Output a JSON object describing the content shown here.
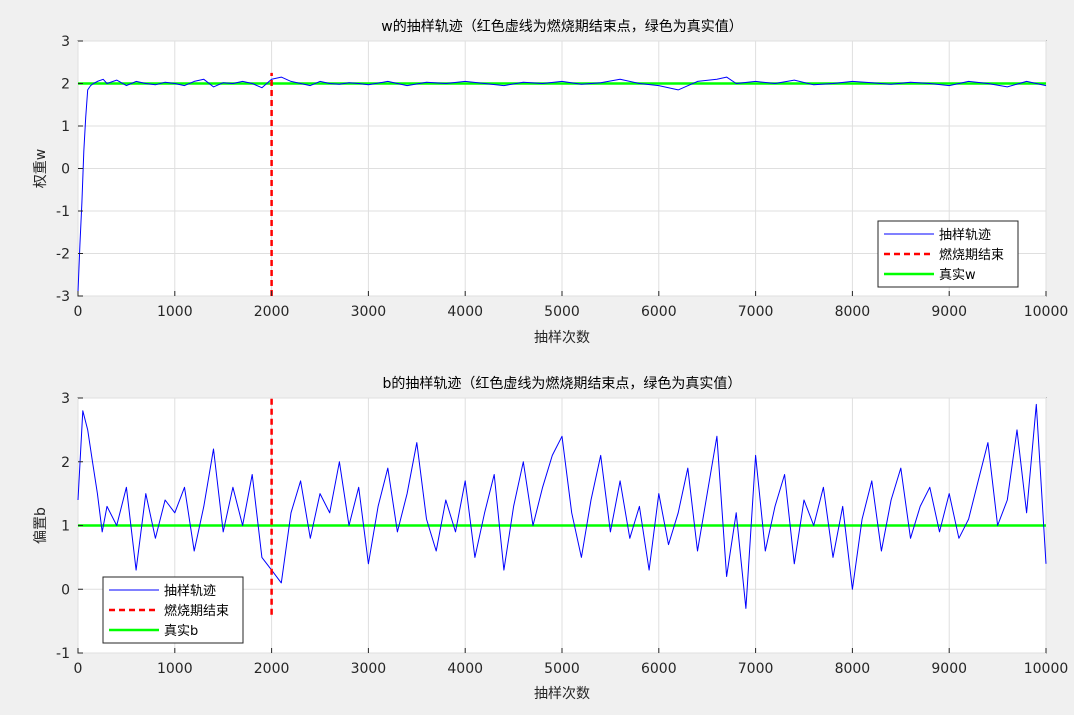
{
  "chart_data": [
    {
      "type": "line",
      "title": "w的抽样轨迹（红色虚线为燃烧期结束点，绿色为真实值）",
      "xlabel": "抽样次数",
      "ylabel": "权重w",
      "xlim": [
        0,
        10000
      ],
      "ylim": [
        -3,
        3
      ],
      "xticks": [
        0,
        1000,
        2000,
        3000,
        4000,
        5000,
        6000,
        7000,
        8000,
        9000,
        10000
      ],
      "yticks": [
        -3,
        -2,
        -1,
        0,
        1,
        2,
        3
      ],
      "grid": true,
      "legend_position": "bottom-right",
      "series": [
        {
          "name": "抽样轨迹",
          "color": "#0000ff",
          "style": "solid",
          "x": [
            0,
            20,
            40,
            60,
            80,
            100,
            130,
            160,
            200,
            260,
            300,
            400,
            500,
            600,
            700,
            800,
            900,
            1000,
            1100,
            1200,
            1300,
            1400,
            1500,
            1600,
            1700,
            1800,
            1900,
            2000,
            2100,
            2200,
            2300,
            2400,
            2500,
            2600,
            2700,
            2800,
            2900,
            3000,
            3200,
            3400,
            3600,
            3800,
            4000,
            4200,
            4400,
            4600,
            4800,
            5000,
            5200,
            5400,
            5600,
            5800,
            6000,
            6200,
            6400,
            6600,
            6700,
            6800,
            7000,
            7200,
            7400,
            7600,
            7800,
            8000,
            8200,
            8400,
            8600,
            8800,
            9000,
            9200,
            9400,
            9600,
            9800,
            10000
          ],
          "values": [
            -2.9,
            -1.8,
            -0.8,
            0.4,
            1.2,
            1.85,
            1.95,
            2.0,
            2.05,
            2.1,
            2.0,
            2.08,
            1.95,
            2.05,
            2.0,
            1.97,
            2.03,
            2.0,
            1.95,
            2.05,
            2.1,
            1.92,
            2.02,
            2.0,
            2.05,
            2.0,
            1.9,
            2.1,
            2.15,
            2.05,
            2.0,
            1.95,
            2.05,
            2.0,
            1.98,
            2.02,
            2.0,
            1.97,
            2.05,
            1.95,
            2.03,
            2.0,
            2.05,
            2.0,
            1.95,
            2.03,
            2.0,
            2.05,
            1.98,
            2.02,
            2.1,
            2.0,
            1.95,
            1.85,
            2.05,
            2.1,
            2.15,
            2.0,
            2.05,
            2.0,
            2.08,
            1.97,
            2.0,
            2.05,
            2.02,
            1.98,
            2.03,
            2.0,
            1.95,
            2.05,
            2.0,
            1.92,
            2.05,
            1.95
          ]
        },
        {
          "name": "燃烧期结束",
          "color": "#ff0000",
          "style": "dashed",
          "x": [
            2000,
            2000
          ],
          "values": [
            -3,
            2.25
          ]
        },
        {
          "name": "真实w",
          "color": "#00ff00",
          "style": "solid",
          "x": [
            0,
            10000
          ],
          "values": [
            2,
            2
          ]
        }
      ]
    },
    {
      "type": "line",
      "title": "b的抽样轨迹（红色虚线为燃烧期结束点，绿色为真实值）",
      "xlabel": "抽样次数",
      "ylabel": "偏置b",
      "xlim": [
        0,
        10000
      ],
      "ylim": [
        -1,
        3
      ],
      "xticks": [
        0,
        1000,
        2000,
        3000,
        4000,
        5000,
        6000,
        7000,
        8000,
        9000,
        10000
      ],
      "yticks": [
        -1,
        0,
        1,
        2,
        3
      ],
      "grid": true,
      "legend_position": "bottom-left",
      "series": [
        {
          "name": "抽样轨迹",
          "color": "#0000ff",
          "style": "solid",
          "x": [
            0,
            50,
            100,
            150,
            200,
            250,
            300,
            400,
            500,
            600,
            700,
            800,
            900,
            1000,
            1100,
            1200,
            1300,
            1400,
            1500,
            1600,
            1700,
            1800,
            1900,
            2000,
            2100,
            2200,
            2300,
            2400,
            2500,
            2600,
            2700,
            2800,
            2900,
            3000,
            3100,
            3200,
            3300,
            3400,
            3500,
            3600,
            3700,
            3800,
            3900,
            4000,
            4100,
            4200,
            4300,
            4400,
            4500,
            4600,
            4700,
            4800,
            4900,
            5000,
            5100,
            5200,
            5300,
            5400,
            5500,
            5600,
            5700,
            5800,
            5900,
            6000,
            6100,
            6200,
            6300,
            6400,
            6500,
            6600,
            6700,
            6800,
            6900,
            7000,
            7100,
            7200,
            7300,
            7400,
            7500,
            7600,
            7700,
            7800,
            7900,
            8000,
            8100,
            8200,
            8300,
            8400,
            8500,
            8600,
            8700,
            8800,
            8900,
            9000,
            9100,
            9200,
            9300,
            9400,
            9500,
            9600,
            9700,
            9800,
            9900,
            10000
          ],
          "values": [
            1.4,
            2.8,
            2.5,
            2.0,
            1.5,
            0.9,
            1.3,
            1.0,
            1.6,
            0.3,
            1.5,
            0.8,
            1.4,
            1.2,
            1.6,
            0.6,
            1.3,
            2.2,
            0.9,
            1.6,
            1.0,
            1.8,
            0.5,
            0.3,
            0.1,
            1.2,
            1.7,
            0.8,
            1.5,
            1.2,
            2.0,
            1.0,
            1.6,
            0.4,
            1.3,
            1.9,
            0.9,
            1.5,
            2.3,
            1.1,
            0.6,
            1.4,
            0.9,
            1.7,
            0.5,
            1.2,
            1.8,
            0.3,
            1.3,
            2.0,
            1.0,
            1.6,
            2.1,
            2.4,
            1.2,
            0.5,
            1.4,
            2.1,
            0.9,
            1.7,
            0.8,
            1.3,
            0.3,
            1.5,
            0.7,
            1.2,
            1.9,
            0.6,
            1.5,
            2.4,
            0.2,
            1.2,
            -0.3,
            2.1,
            0.6,
            1.3,
            1.8,
            0.4,
            1.4,
            1.0,
            1.6,
            0.5,
            1.3,
            0.0,
            1.1,
            1.7,
            0.6,
            1.4,
            1.9,
            0.8,
            1.3,
            1.6,
            0.9,
            1.5,
            0.8,
            1.1,
            1.7,
            2.3,
            1.0,
            1.4,
            2.5,
            1.2,
            2.9,
            0.4
          ]
        },
        {
          "name": "燃烧期结束",
          "color": "#ff0000",
          "style": "dashed",
          "x": [
            2000,
            2000
          ],
          "values": [
            -0.4,
            3
          ]
        },
        {
          "name": "真实b",
          "color": "#00ff00",
          "style": "solid",
          "x": [
            0,
            10000
          ],
          "values": [
            1,
            1
          ]
        }
      ]
    }
  ]
}
